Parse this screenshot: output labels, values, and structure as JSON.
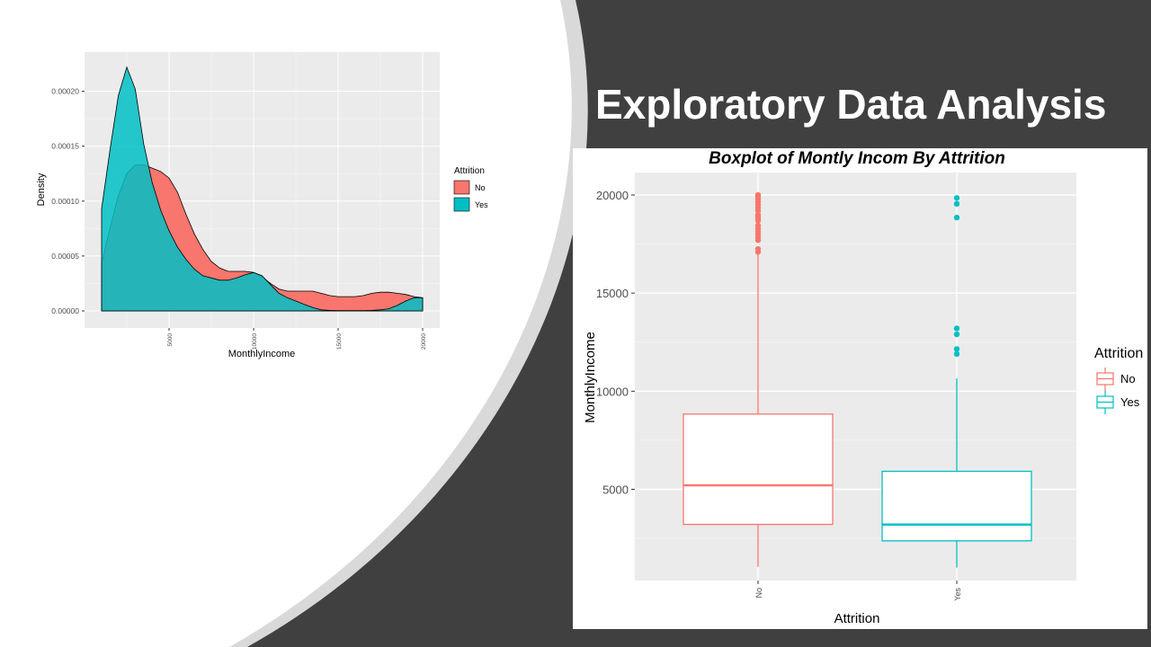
{
  "slide": {
    "title": "Exploratory Data Analysis",
    "colors": {
      "background_dark": "#404040",
      "curve_panel": "#ffffff",
      "accent_arc": "#d9d9d9"
    }
  },
  "chart_data": [
    {
      "type": "area",
      "subtype": "density",
      "title": "",
      "xlabel": "MonthlyIncome",
      "ylabel": "Density",
      "xlim": [
        1009,
        19999
      ],
      "ylim": [
        0,
        0.000225
      ],
      "x_ticks": [
        5000,
        10000,
        15000,
        20000
      ],
      "x_tick_labels": [
        "5000",
        "10000",
        "15000",
        "20000"
      ],
      "y_ticks": [
        0,
        5e-05,
        0.0001,
        0.00015,
        0.0002
      ],
      "y_tick_labels": [
        "0.00000",
        "0.00005",
        "0.00010",
        "0.00015",
        "0.00020"
      ],
      "grid": true,
      "legend": {
        "title": "Attrition",
        "placement": "right"
      },
      "series": [
        {
          "name": "No",
          "color": "#F8766D",
          "x": [
            1009,
            1500,
            2000,
            2500,
            3000,
            3500,
            4000,
            4500,
            5000,
            5500,
            6000,
            6500,
            7000,
            7500,
            8000,
            8500,
            9000,
            9500,
            10000,
            10500,
            11000,
            11500,
            12000,
            12500,
            13000,
            13500,
            14000,
            14500,
            15000,
            15500,
            16000,
            16500,
            17000,
            17500,
            18000,
            18500,
            19000,
            19500,
            19999
          ],
          "y": [
            4.3e-05,
            7.5e-05,
            0.000105,
            0.000125,
            0.000133,
            0.000133,
            0.00013,
            0.000127,
            0.000121,
            0.000108,
            8.8e-05,
            7e-05,
            5.6e-05,
            4.5e-05,
            3.9e-05,
            3.6e-05,
            3.6e-05,
            3.6e-05,
            3.5e-05,
            3.1e-05,
            2.5e-05,
            2e-05,
            1.8e-05,
            1.8e-05,
            1.8e-05,
            1.8e-05,
            1.6e-05,
            1.4e-05,
            1.3e-05,
            1.3e-05,
            1.3e-05,
            1.4e-05,
            1.6e-05,
            1.7e-05,
            1.7e-05,
            1.6e-05,
            1.5e-05,
            1.3e-05,
            1.2e-05
          ]
        },
        {
          "name": "Yes",
          "color": "#00BFC4",
          "x": [
            1009,
            1500,
            2000,
            2500,
            3000,
            3500,
            4000,
            4500,
            5000,
            5500,
            6000,
            6500,
            7000,
            7500,
            8000,
            8500,
            9000,
            9500,
            10000,
            10500,
            11000,
            11500,
            12000,
            12500,
            13000,
            13500,
            14000,
            14500,
            15000,
            15500,
            16000,
            16500,
            17000,
            17500,
            18000,
            18500,
            19000,
            19500,
            19999
          ],
          "y": [
            9.3e-05,
            0.000146,
            0.000196,
            0.000222,
            0.000202,
            0.000152,
            0.000117,
            9.2e-05,
            7.3e-05,
            5.8e-05,
            4.7e-05,
            3.8e-05,
            3.2e-05,
            3e-05,
            2.8e-05,
            2.8e-05,
            3e-05,
            3.3e-05,
            3.5e-05,
            3.2e-05,
            2.4e-05,
            1.6e-05,
            1.2e-05,
            9e-06,
            6e-06,
            3e-06,
            1e-06,
            5e-07,
            3e-07,
            3e-07,
            3e-07,
            3e-07,
            5e-07,
            1e-06,
            2e-06,
            5e-06,
            9e-06,
            1.2e-05,
            1.2e-05
          ]
        }
      ]
    },
    {
      "type": "boxplot",
      "title": "Boxplot of Montly Incom By  Attrition",
      "xlabel": "Attrition",
      "ylabel": "MonthlyIncome",
      "categories": [
        "No",
        "Yes"
      ],
      "ylim": [
        1000,
        20600
      ],
      "y_ticks": [
        5000,
        10000,
        15000,
        20000
      ],
      "y_tick_labels": [
        "5000",
        "10000",
        "15000",
        "20000"
      ],
      "grid": true,
      "legend": {
        "title": "Attrition",
        "placement": "right"
      },
      "series": [
        {
          "name": "No",
          "color": "#F8766D",
          "min": 1051,
          "q1": 3211,
          "median": 5204,
          "q3": 8834,
          "whisker_high": 17100,
          "outliers": [
            17100,
            17250,
            17700,
            17850,
            18000,
            18150,
            18300,
            18450,
            18700,
            18800,
            18900,
            19000,
            19200,
            19350,
            19500,
            19650,
            19800,
            19900,
            19999
          ]
        },
        {
          "name": "Yes",
          "color": "#00BFC4",
          "min": 1009,
          "q1": 2373,
          "median": 3202,
          "q3": 5916,
          "whisker_high": 10650,
          "outliers": [
            11900,
            12150,
            12900,
            13200,
            18850,
            19550,
            19850
          ]
        }
      ]
    }
  ]
}
